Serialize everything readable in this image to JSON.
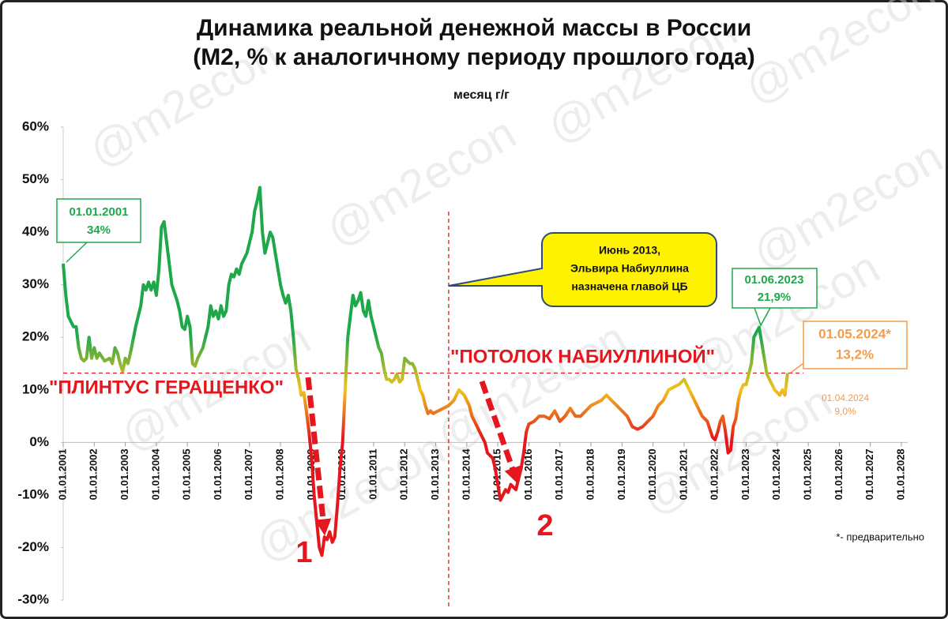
{
  "chart_data": {
    "type": "line",
    "title": "Динамика реальной денежной массы в России",
    "subtitle": "(М2, % к аналогичному периоду прошлого года)",
    "watermark": "@m2econ",
    "legend": "top",
    "ylim": [
      -30,
      60
    ],
    "yticks": [
      {
        "value": -30,
        "label": "-30%"
      },
      {
        "value": -20,
        "label": "-20%"
      },
      {
        "value": -10,
        "label": "-10%"
      },
      {
        "value": 0,
        "label": "0%"
      },
      {
        "value": 10,
        "label": "10%"
      },
      {
        "value": 20,
        "label": "20%"
      },
      {
        "value": 30,
        "label": "30%"
      },
      {
        "value": 40,
        "label": "40%"
      },
      {
        "value": 50,
        "label": "50%"
      },
      {
        "value": 60,
        "label": "60%"
      }
    ],
    "xlim": [
      "01.01.2001",
      "01.01.2028"
    ],
    "xticks": [
      "01.01.2001",
      "01.01.2002",
      "01.01.2003",
      "01.01.2004",
      "01.01.2005",
      "01.01.2006",
      "01.01.2007",
      "01.01.2008",
      "01.01.2009",
      "01.01.2010",
      "01.01.2011",
      "01.01.2012",
      "01.01.2013",
      "01.01.2014",
      "01.01.2015",
      "01.01.2016",
      "01.01.2017",
      "01.01.2018",
      "01.01.2019",
      "01.01.2020",
      "01.01.2021",
      "01.01.2022",
      "01.01.2023",
      "01.01.2024",
      "01.01.2025",
      "01.01.2026",
      "01.01.2027",
      "01.01.2028"
    ],
    "series_name": "месяц г/г",
    "colors": {
      "high": "#1fa84a",
      "mid": "#f2c21b",
      "low": "#e5161d"
    },
    "x": [
      "01.01.2001",
      "01.02.2001",
      "01.03.2001",
      "01.05.2001",
      "01.06.2001",
      "01.07.2001",
      "01.08.2001",
      "01.09.2001",
      "01.10.2001",
      "01.11.2001",
      "01.12.2001",
      "01.01.2002",
      "01.02.2002",
      "01.03.2002",
      "01.05.2002",
      "01.07.2002",
      "01.08.2002",
      "01.09.2002",
      "01.10.2002",
      "01.11.2002",
      "01.12.2002",
      "01.01.2003",
      "01.02.2003",
      "01.03.2003",
      "01.05.2003",
      "01.07.2003",
      "01.08.2003",
      "01.09.2003",
      "01.10.2003",
      "01.11.2003",
      "01.12.2003",
      "01.01.2004",
      "01.02.2004",
      "01.03.2004",
      "01.04.2004",
      "01.05.2004",
      "01.07.2004",
      "01.09.2004",
      "01.10.2004",
      "01.11.2004",
      "01.12.2004",
      "01.01.2005",
      "01.02.2005",
      "01.03.2005",
      "01.04.2005",
      "01.05.2005",
      "01.07.2005",
      "01.09.2005",
      "01.10.2005",
      "01.11.2005",
      "01.12.2005",
      "01.01.2006",
      "01.02.2006",
      "01.03.2006",
      "01.04.2006",
      "01.05.2006",
      "01.06.2006",
      "01.07.2006",
      "01.08.2006",
      "01.09.2006",
      "01.10.2006",
      "01.12.2006",
      "01.01.2007",
      "01.02.2007",
      "01.03.2007",
      "01.04.2007",
      "01.05.2007",
      "01.06.2007",
      "01.07.2007",
      "01.08.2007",
      "01.09.2007",
      "01.10.2007",
      "01.11.2007",
      "01.12.2007",
      "01.01.2008",
      "01.02.2008",
      "01.03.2008",
      "01.04.2008",
      "01.05.2008",
      "01.06.2008",
      "01.07.2008",
      "01.08.2008",
      "01.09.2008",
      "01.10.2008",
      "01.11.2008",
      "01.12.2008",
      "01.01.2009",
      "01.02.2009",
      "01.03.2009",
      "01.04.2009",
      "01.05.2009",
      "01.06.2009",
      "01.07.2009",
      "01.08.2009",
      "01.09.2009",
      "01.10.2009",
      "01.11.2009",
      "01.12.2009",
      "01.01.2010",
      "01.02.2010",
      "01.03.2010",
      "01.04.2010",
      "01.05.2010",
      "01.06.2010",
      "01.07.2010",
      "01.08.2010",
      "01.09.2010",
      "01.10.2010",
      "01.11.2010",
      "01.12.2010",
      "01.01.2011",
      "01.02.2011",
      "01.03.2011",
      "01.04.2011",
      "01.05.2011",
      "01.06.2011",
      "01.07.2011",
      "01.08.2011",
      "01.09.2011",
      "01.10.2011",
      "01.11.2011",
      "01.12.2011",
      "01.01.2012",
      "01.02.2012",
      "01.03.2012",
      "01.04.2012",
      "01.05.2012",
      "01.06.2012",
      "01.07.2012",
      "01.08.2012",
      "01.09.2012",
      "01.10.2012",
      "01.11.2012",
      "01.12.2012",
      "01.02.2013",
      "01.04.2013",
      "01.06.2013",
      "01.08.2013",
      "01.10.2013",
      "01.12.2013",
      "01.02.2014",
      "01.03.2014",
      "01.04.2014",
      "01.06.2014",
      "01.07.2014",
      "01.08.2014",
      "01.09.2014",
      "01.10.2014",
      "01.11.2014",
      "01.12.2014",
      "01.01.2015",
      "01.02.2015",
      "01.03.2015",
      "01.04.2015",
      "01.05.2015",
      "01.06.2015",
      "01.07.2015",
      "01.08.2015",
      "01.09.2015",
      "01.10.2015",
      "01.11.2015",
      "01.12.2015",
      "01.01.2016",
      "01.03.2016",
      "01.05.2016",
      "01.07.2016",
      "01.09.2016",
      "01.11.2016",
      "01.01.2017",
      "01.03.2017",
      "01.05.2017",
      "01.07.2017",
      "01.09.2017",
      "01.11.2017",
      "01.01.2018",
      "01.03.2018",
      "01.05.2018",
      "01.07.2018",
      "01.09.2018",
      "01.11.2018",
      "01.01.2019",
      "01.03.2019",
      "01.05.2019",
      "01.07.2019",
      "01.09.2019",
      "01.11.2019",
      "01.01.2020",
      "01.03.2020",
      "01.05.2020",
      "01.07.2020",
      "01.09.2020",
      "01.11.2020",
      "01.01.2021",
      "01.02.2021",
      "01.04.2021",
      "01.06.2021",
      "01.08.2021",
      "01.10.2021",
      "01.12.2021",
      "01.01.2022",
      "01.02.2022",
      "01.03.2022",
      "01.04.2022",
      "01.05.2022",
      "01.06.2022",
      "01.07.2022",
      "01.08.2022",
      "01.09.2022",
      "01.10.2022",
      "01.11.2022",
      "01.12.2022",
      "01.01.2023",
      "01.02.2023",
      "01.03.2023",
      "01.04.2023",
      "01.05.2023",
      "01.06.2023",
      "01.07.2023",
      "01.08.2023",
      "01.09.2023",
      "01.10.2023",
      "01.11.2023",
      "01.12.2023",
      "01.01.2024",
      "01.02.2024",
      "01.03.2024",
      "01.04.2024",
      "01.05.2024"
    ],
    "values": [
      34,
      28,
      24,
      22,
      22,
      18,
      16,
      15.5,
      16,
      20,
      16,
      18,
      16,
      17,
      15.5,
      16,
      15,
      18,
      17,
      15,
      13.5,
      16,
      15,
      17,
      22,
      26,
      30,
      29,
      30.5,
      29,
      30.5,
      28,
      33,
      41,
      42,
      38,
      30,
      27,
      25,
      22,
      21.5,
      24,
      22,
      15,
      14.5,
      16,
      18,
      22,
      26,
      24,
      25,
      23.5,
      26,
      24,
      25,
      30,
      32,
      31.5,
      33,
      32,
      34,
      36,
      38,
      40,
      44,
      46,
      48.5,
      40,
      36,
      38,
      40,
      39,
      36,
      33,
      30,
      28,
      26.5,
      28,
      25,
      20,
      14,
      12,
      9,
      9.5,
      6,
      2,
      -3,
      -10,
      -15,
      -20,
      -21.5,
      -18,
      -18.5,
      -17,
      -19,
      -18,
      -12,
      -5,
      0,
      10,
      20,
      24,
      28,
      26,
      27,
      28.5,
      25,
      24,
      27,
      24,
      22,
      20,
      18,
      17,
      14,
      12,
      12,
      11.5,
      12,
      13,
      11.5,
      12,
      16,
      15.5,
      15,
      15,
      14,
      12,
      10,
      9,
      7,
      5.5,
      6,
      5.5,
      6,
      6.5,
      7,
      8,
      10,
      9,
      7,
      5,
      4,
      2,
      1,
      0,
      -2,
      -2.5,
      -3,
      -5,
      -8,
      -11,
      -10,
      -9,
      -9.5,
      -8,
      -8.5,
      -9,
      -7,
      -5,
      -2,
      2,
      3.5,
      4,
      5,
      5,
      4.5,
      6,
      4,
      5,
      6.5,
      5,
      5,
      6,
      7,
      7.5,
      8,
      9,
      8,
      7,
      6,
      5,
      3,
      2.5,
      3,
      4,
      5,
      7,
      8,
      10,
      10.5,
      11,
      12,
      11,
      9,
      7,
      5,
      4,
      1,
      0.5,
      2,
      4,
      5,
      2,
      -2,
      -1.5,
      3,
      4.5,
      8,
      10,
      11,
      11,
      13,
      15,
      20,
      21,
      21.9,
      19,
      16,
      13,
      12,
      11,
      10,
      9.5,
      9,
      10,
      9.0,
      13.2
    ],
    "value_labels": [
      "34%",
      null,
      null,
      null,
      null,
      null,
      null,
      null,
      null,
      null,
      null,
      null,
      null,
      null,
      null,
      null,
      null,
      null,
      null,
      null,
      null,
      null,
      null,
      null,
      null,
      null,
      null,
      null,
      null,
      null,
      null,
      null,
      null,
      null,
      null,
      null,
      null,
      null,
      null,
      null,
      null,
      null,
      null,
      null,
      null,
      null,
      null,
      null,
      null,
      null,
      null,
      null,
      null,
      null,
      null,
      null,
      null,
      null,
      null,
      null,
      null,
      null,
      null,
      null,
      null,
      null,
      null,
      null,
      null,
      null,
      null,
      null,
      null,
      null,
      null,
      null,
      null,
      null,
      null,
      null,
      null,
      null,
      null,
      null,
      null,
      null,
      null,
      null,
      null,
      null,
      null,
      null,
      null,
      null,
      null,
      null,
      null,
      null,
      null,
      null,
      null,
      null,
      null,
      null,
      null,
      null,
      null,
      null,
      null,
      null,
      null,
      null,
      null,
      null,
      null,
      null,
      null,
      null,
      null,
      null,
      null,
      null,
      null,
      null,
      null,
      null,
      null,
      null,
      null,
      null,
      null,
      null,
      null,
      null,
      null,
      null,
      null,
      null,
      null,
      null,
      null,
      null,
      null,
      null,
      null,
      null,
      null,
      null,
      null,
      null,
      null,
      null,
      null,
      null,
      null,
      null,
      null,
      null,
      null,
      null,
      null,
      null,
      null,
      null,
      null,
      null,
      null,
      null,
      null,
      null,
      null,
      null,
      null,
      null,
      null,
      null,
      null,
      null,
      null,
      null,
      null,
      null,
      null,
      null,
      null,
      null,
      null,
      null,
      null,
      null,
      null,
      null,
      null,
      null,
      null,
      null,
      null,
      null,
      null,
      null,
      null,
      null,
      null,
      null,
      null,
      null,
      null,
      null,
      null,
      null,
      null,
      null,
      null,
      null,
      null,
      null,
      "21,9%",
      null,
      null,
      null,
      null,
      null,
      null,
      null,
      null,
      null,
      "9,0%",
      "13,2%"
    ],
    "latest_label": "01.05.2024*",
    "hline": 13.2,
    "vline": "01.06.2013",
    "annotations": {
      "nabiullina": [
        "Июнь 2013,",
        "Эльвира  Набиуллина",
        "назначена главой ЦБ"
      ],
      "floor": "\"ПЛИНТУС ГЕРАЩЕНКО\"",
      "ceiling": "\"ПОТОЛОК НАБИУЛЛИНОЙ\"",
      "mark1": "1",
      "mark2": "2",
      "footnote": "*- предварительно"
    }
  }
}
